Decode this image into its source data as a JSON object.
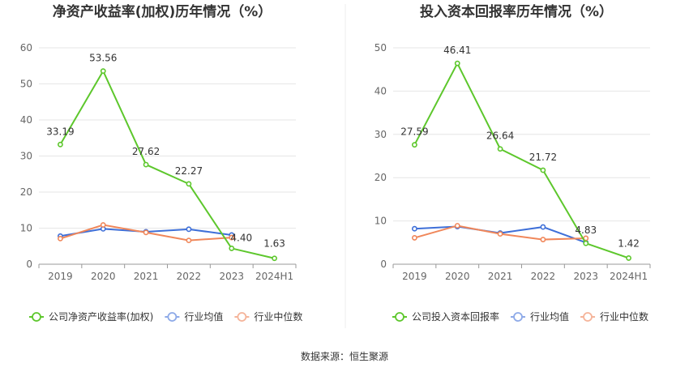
{
  "colors": {
    "company": "#5dc72c",
    "industry_avg": "#3e6fd8",
    "industry_median": "#f0875a",
    "industry_avg_legend": "#8eaae8",
    "industry_median_legend": "#f5b49a"
  },
  "source": "数据来源：恒生聚源",
  "chart_data": [
    {
      "type": "line",
      "title": "净资产收益率(加权)历年情况（%）",
      "categories": [
        "2019",
        "2020",
        "2021",
        "2022",
        "2023",
        "2024H1"
      ],
      "ylim": [
        0,
        60
      ],
      "yticks": [
        0,
        10,
        20,
        30,
        40,
        50,
        60
      ],
      "series": [
        {
          "name": "公司净资产收益率(加权)",
          "values": [
            33.19,
            53.56,
            27.62,
            22.27,
            4.4,
            1.63
          ],
          "labels": [
            "33.19",
            "53.56",
            "27.62",
            "22.27",
            "4.40",
            "1.63"
          ]
        },
        {
          "name": "行业均值",
          "values": [
            7.8,
            9.8,
            9.0,
            9.7,
            8.1,
            null
          ]
        },
        {
          "name": "行业中位数",
          "values": [
            7.1,
            10.9,
            8.8,
            6.6,
            7.4,
            null
          ]
        }
      ],
      "legend": [
        "公司净资产收益率(加权)",
        "行业均值",
        "行业中位数"
      ],
      "legend_position": "bottom"
    },
    {
      "type": "line",
      "title": "投入资本回报率历年情况（%）",
      "categories": [
        "2019",
        "2020",
        "2021",
        "2022",
        "2023",
        "2024H1"
      ],
      "ylim": [
        0,
        50
      ],
      "yticks": [
        0,
        10,
        20,
        30,
        40,
        50
      ],
      "series": [
        {
          "name": "公司投入资本回报率",
          "values": [
            27.59,
            46.41,
            26.64,
            21.72,
            4.83,
            1.42
          ],
          "labels": [
            "27.59",
            "46.41",
            "26.64",
            "21.72",
            "4.83",
            "1.42"
          ]
        },
        {
          "name": "行业均值",
          "values": [
            8.2,
            8.7,
            7.2,
            8.6,
            5.0,
            null
          ]
        },
        {
          "name": "行业中位数",
          "values": [
            6.1,
            8.9,
            7.0,
            5.7,
            6.0,
            null
          ]
        }
      ],
      "legend": [
        "公司投入资本回报率",
        "行业均值",
        "行业中位数"
      ],
      "legend_position": "bottom"
    }
  ]
}
